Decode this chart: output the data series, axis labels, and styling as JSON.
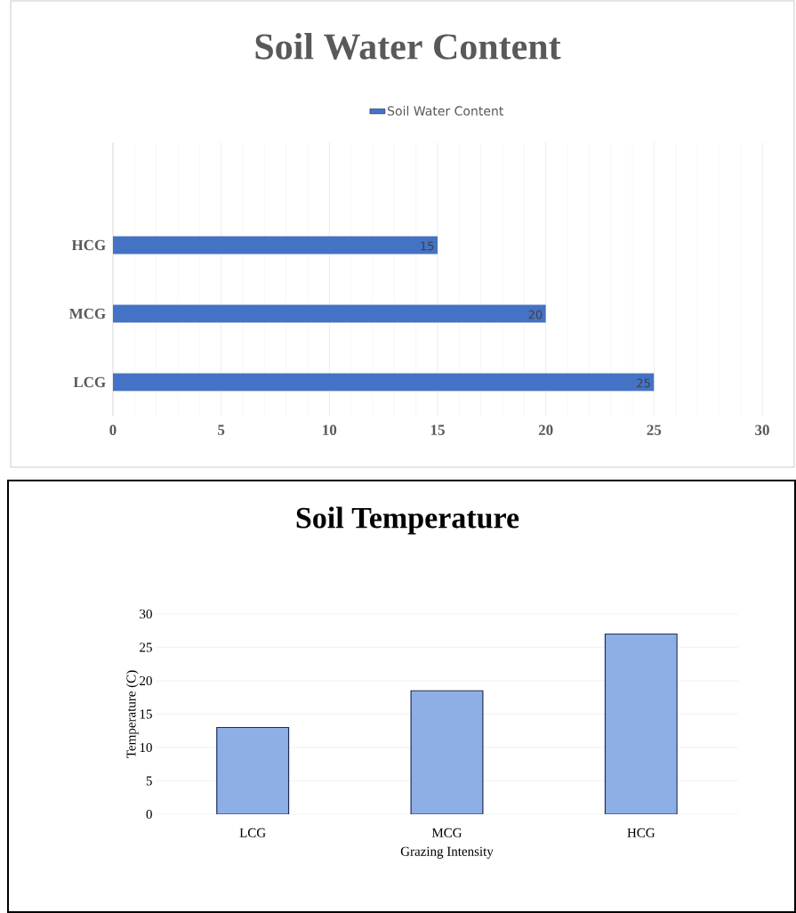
{
  "chart_data": [
    {
      "type": "bar",
      "title": "Soil Water Content",
      "orientation": "horizontal",
      "categories": [
        null,
        "HCG",
        "MCG",
        "LCG"
      ],
      "series": [
        {
          "name": "Soil Water Content",
          "color": "#4472c4",
          "values": [
            null,
            15,
            20,
            25
          ]
        }
      ],
      "xlim": [
        0,
        30
      ],
      "xticks": [
        0,
        5,
        10,
        15,
        20,
        25,
        30
      ],
      "grid": "x",
      "legend": "top",
      "data_labels": true
    },
    {
      "type": "bar",
      "title": "Soil Temperature",
      "xlabel": "Grazing Intensity",
      "ylabel": "Temperature (C)",
      "categories": [
        "LCG",
        "MCG",
        "HCG"
      ],
      "series": [
        {
          "color": "#8eaee6",
          "values": [
            13,
            18.5,
            27
          ]
        }
      ],
      "ylim": [
        0,
        30
      ],
      "yticks": [
        0,
        5,
        10,
        15,
        20,
        25,
        30
      ],
      "grid": "y"
    }
  ]
}
